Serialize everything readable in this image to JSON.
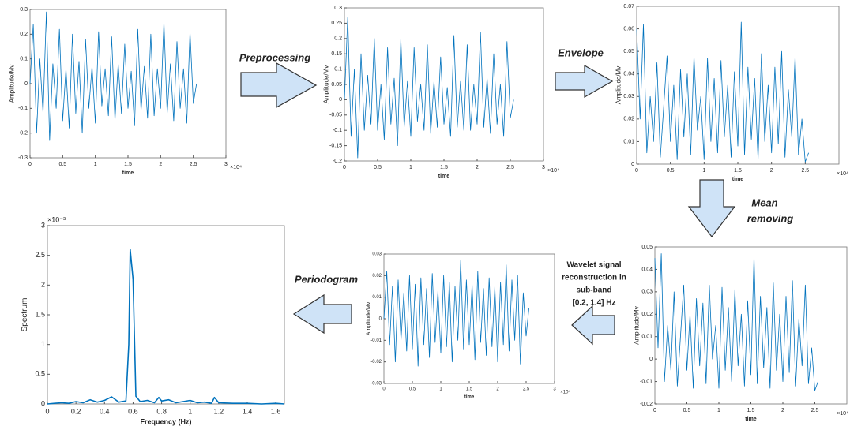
{
  "chart_data": [
    {
      "type": "line",
      "y_label": "Amplitude/Mv",
      "x_label": "time",
      "x_multiplier": "×10⁴",
      "color": "#0072bd",
      "xlim": [
        0,
        3
      ],
      "ylim": [
        -0.3,
        0.3
      ],
      "xticks": [
        0,
        0.5,
        1,
        1.5,
        2,
        2.5,
        3
      ],
      "yticks": [
        -0.3,
        -0.2,
        -0.1,
        0,
        0.1,
        0.2,
        0.3
      ],
      "x": [
        0,
        0.05,
        0.1,
        0.15,
        0.2,
        0.25,
        0.3,
        0.35,
        0.4,
        0.45,
        0.5,
        0.55,
        0.6,
        0.65,
        0.7,
        0.75,
        0.8,
        0.85,
        0.9,
        0.95,
        1,
        1.05,
        1.1,
        1.15,
        1.2,
        1.25,
        1.3,
        1.35,
        1.4,
        1.45,
        1.5,
        1.55,
        1.6,
        1.65,
        1.7,
        1.75,
        1.8,
        1.85,
        1.9,
        1.95,
        2,
        2.05,
        2.1,
        2.15,
        2.2,
        2.25,
        2.3,
        2.35,
        2.4,
        2.45,
        2.5,
        2.55
      ],
      "values": [
        0.0,
        0.24,
        -0.2,
        0.1,
        -0.12,
        0.29,
        -0.23,
        0.08,
        -0.1,
        0.22,
        -0.15,
        0.06,
        -0.18,
        0.2,
        -0.12,
        0.09,
        -0.2,
        0.18,
        -0.1,
        0.07,
        -0.16,
        0.21,
        -0.09,
        0.06,
        -0.13,
        0.19,
        -0.15,
        0.08,
        -0.12,
        0.16,
        -0.1,
        0.05,
        -0.17,
        0.22,
        -0.11,
        0.07,
        -0.14,
        0.2,
        -0.13,
        0.06,
        -0.1,
        0.25,
        -0.12,
        0.08,
        -0.15,
        0.17,
        -0.1,
        0.06,
        -0.16,
        0.21,
        -0.08,
        0.0
      ]
    },
    {
      "type": "line",
      "y_label": "Amplitude/Mv",
      "x_label": "time",
      "x_multiplier": "×10⁴",
      "color": "#0072bd",
      "xlim": [
        0,
        3
      ],
      "ylim": [
        -0.2,
        0.3
      ],
      "xticks": [
        0,
        0.5,
        1,
        1.5,
        2,
        2.5,
        3
      ],
      "yticks": [
        -0.2,
        -0.15,
        -0.1,
        -0.05,
        0,
        0.05,
        0.1,
        0.15,
        0.2,
        0.25,
        0.3
      ],
      "x": [
        0,
        0.05,
        0.1,
        0.15,
        0.2,
        0.25,
        0.3,
        0.35,
        0.4,
        0.45,
        0.5,
        0.55,
        0.6,
        0.65,
        0.7,
        0.75,
        0.8,
        0.85,
        0.9,
        0.95,
        1,
        1.05,
        1.1,
        1.15,
        1.2,
        1.25,
        1.3,
        1.35,
        1.4,
        1.45,
        1.5,
        1.55,
        1.6,
        1.65,
        1.7,
        1.75,
        1.8,
        1.85,
        1.9,
        1.95,
        2,
        2.05,
        2.1,
        2.15,
        2.2,
        2.25,
        2.3,
        2.35,
        2.4,
        2.45,
        2.5,
        2.55
      ],
      "values": [
        0.0,
        0.27,
        -0.12,
        0.1,
        -0.19,
        0.15,
        -0.1,
        0.08,
        -0.08,
        0.2,
        -0.1,
        0.05,
        -0.13,
        0.17,
        -0.08,
        0.07,
        -0.15,
        0.2,
        -0.09,
        0.06,
        -0.12,
        0.17,
        -0.07,
        0.05,
        -0.1,
        0.18,
        -0.11,
        0.06,
        -0.09,
        0.14,
        -0.08,
        0.04,
        -0.12,
        0.21,
        -0.09,
        0.06,
        -0.1,
        0.18,
        -0.1,
        0.05,
        -0.08,
        0.22,
        -0.09,
        0.07,
        -0.11,
        0.15,
        -0.08,
        0.05,
        -0.12,
        0.19,
        -0.06,
        0.0
      ]
    },
    {
      "type": "line",
      "y_label": "Amplitude/Mv",
      "x_label": "time",
      "x_multiplier": "×10⁴",
      "color": "#0072bd",
      "xlim": [
        0,
        3
      ],
      "ylim": [
        0,
        0.07
      ],
      "xticks": [
        0,
        0.5,
        1,
        1.5,
        2,
        2.5
      ],
      "yticks": [
        0,
        0.01,
        0.02,
        0.03,
        0.04,
        0.05,
        0.06,
        0.07
      ],
      "x": [
        0,
        0.05,
        0.1,
        0.15,
        0.2,
        0.25,
        0.3,
        0.35,
        0.4,
        0.45,
        0.5,
        0.55,
        0.6,
        0.65,
        0.7,
        0.75,
        0.8,
        0.85,
        0.9,
        0.95,
        1,
        1.05,
        1.1,
        1.15,
        1.2,
        1.25,
        1.3,
        1.35,
        1.4,
        1.45,
        1.5,
        1.55,
        1.6,
        1.65,
        1.7,
        1.75,
        1.8,
        1.85,
        1.9,
        1.95,
        2,
        2.05,
        2.1,
        2.15,
        2.2,
        2.25,
        2.3,
        2.35,
        2.4,
        2.45,
        2.5,
        2.55
      ],
      "values": [
        0.06,
        0.02,
        0.062,
        0.005,
        0.03,
        0.01,
        0.045,
        0.003,
        0.025,
        0.048,
        0.01,
        0.035,
        0.002,
        0.042,
        0.012,
        0.04,
        0.004,
        0.048,
        0.015,
        0.03,
        0.002,
        0.047,
        0.01,
        0.038,
        0.005,
        0.046,
        0.012,
        0.035,
        0.003,
        0.041,
        0.008,
        0.063,
        0.004,
        0.043,
        0.011,
        0.038,
        0.002,
        0.049,
        0.01,
        0.035,
        0.005,
        0.043,
        0.009,
        0.05,
        0.003,
        0.033,
        0.012,
        0.048,
        0.004,
        0.02,
        0.001,
        0.005
      ]
    },
    {
      "type": "line",
      "y_label": "Amplitude/Mv",
      "x_label": "time",
      "x_multiplier": "×10⁴",
      "color": "#0072bd",
      "xlim": [
        0,
        3
      ],
      "ylim": [
        -0.02,
        0.05
      ],
      "xticks": [
        0,
        0.5,
        1,
        1.5,
        2,
        2.5
      ],
      "yticks": [
        -0.02,
        -0.01,
        0,
        0.01,
        0.02,
        0.03,
        0.04,
        0.05
      ],
      "x": [
        0,
        0.05,
        0.1,
        0.15,
        0.2,
        0.25,
        0.3,
        0.35,
        0.4,
        0.45,
        0.5,
        0.55,
        0.6,
        0.65,
        0.7,
        0.75,
        0.8,
        0.85,
        0.9,
        0.95,
        1,
        1.05,
        1.1,
        1.15,
        1.2,
        1.25,
        1.3,
        1.35,
        1.4,
        1.45,
        1.5,
        1.55,
        1.6,
        1.65,
        1.7,
        1.75,
        1.8,
        1.85,
        1.9,
        1.95,
        2,
        2.05,
        2.1,
        2.15,
        2.2,
        2.25,
        2.3,
        2.35,
        2.4,
        2.45,
        2.5,
        2.55
      ],
      "values": [
        0.045,
        0.005,
        0.047,
        -0.01,
        0.015,
        -0.005,
        0.03,
        -0.012,
        0.01,
        0.033,
        -0.005,
        0.02,
        -0.013,
        0.027,
        -0.003,
        0.025,
        -0.011,
        0.033,
        0,
        0.015,
        -0.013,
        0.032,
        -0.005,
        0.023,
        -0.01,
        0.031,
        -0.003,
        0.02,
        -0.012,
        0.026,
        -0.007,
        0.046,
        -0.011,
        0.028,
        -0.004,
        0.023,
        -0.013,
        0.034,
        -0.005,
        0.02,
        -0.01,
        0.028,
        -0.006,
        0.035,
        -0.012,
        0.018,
        -0.003,
        0.033,
        -0.011,
        0.005,
        -0.014,
        -0.01
      ]
    },
    {
      "type": "line",
      "y_label": "Amplitude/Mv",
      "x_label": "time",
      "x_multiplier": "×10⁴",
      "color": "#0072bd",
      "xlim": [
        0,
        3
      ],
      "ylim": [
        -0.03,
        0.03
      ],
      "xticks": [
        0,
        0.5,
        1,
        1.5,
        2,
        2.5,
        3
      ],
      "yticks": [
        -0.03,
        -0.02,
        -0.01,
        0,
        0.01,
        0.02,
        0.03
      ],
      "x": [
        0,
        0.05,
        0.1,
        0.15,
        0.2,
        0.25,
        0.3,
        0.35,
        0.4,
        0.45,
        0.5,
        0.55,
        0.6,
        0.65,
        0.7,
        0.75,
        0.8,
        0.85,
        0.9,
        0.95,
        1,
        1.05,
        1.1,
        1.15,
        1.2,
        1.25,
        1.3,
        1.35,
        1.4,
        1.45,
        1.5,
        1.55,
        1.6,
        1.65,
        1.7,
        1.75,
        1.8,
        1.85,
        1.9,
        1.95,
        2,
        2.05,
        2.1,
        2.15,
        2.2,
        2.25,
        2.3,
        2.35,
        2.4,
        2.45,
        2.5,
        2.55
      ],
      "values": [
        0,
        0.022,
        -0.012,
        0.015,
        -0.02,
        0.018,
        -0.01,
        0.012,
        -0.015,
        0.02,
        -0.014,
        0.016,
        -0.022,
        0.019,
        -0.012,
        0.014,
        -0.018,
        0.021,
        -0.011,
        0.013,
        -0.016,
        0.02,
        -0.013,
        0.017,
        -0.02,
        0.015,
        -0.01,
        0.027,
        -0.014,
        0.018,
        -0.012,
        0.016,
        -0.019,
        0.022,
        -0.011,
        0.014,
        -0.017,
        0.019,
        -0.013,
        0.015,
        -0.02,
        0.017,
        -0.012,
        0.025,
        -0.015,
        0.018,
        -0.01,
        0.02,
        -0.021,
        0.012,
        -0.008,
        0.005
      ]
    },
    {
      "type": "line",
      "y_label": "Spectrum",
      "x_label": "Frequency (Hz)",
      "y_multiplier": "×10⁻³",
      "color": "#0072bd",
      "xlim": [
        0,
        1.66
      ],
      "ylim": [
        0,
        3
      ],
      "xticks": [
        0,
        0.2,
        0.4,
        0.6,
        0.8,
        1,
        1.2,
        1.4,
        1.6
      ],
      "yticks": [
        0,
        0.5,
        1,
        1.5,
        2,
        2.5,
        3
      ],
      "x": [
        0,
        0.05,
        0.1,
        0.15,
        0.2,
        0.25,
        0.3,
        0.35,
        0.4,
        0.45,
        0.5,
        0.55,
        0.57,
        0.58,
        0.6,
        0.62,
        0.65,
        0.7,
        0.75,
        0.78,
        0.8,
        0.85,
        0.9,
        0.95,
        1,
        1.05,
        1.1,
        1.15,
        1.17,
        1.2,
        1.3,
        1.4,
        1.5,
        1.6,
        1.66
      ],
      "values": [
        0,
        0.01,
        0.02,
        0.01,
        0.04,
        0.02,
        0.07,
        0.03,
        0.06,
        0.12,
        0.03,
        0.05,
        1.0,
        2.6,
        2.1,
        0.13,
        0.04,
        0.06,
        0.02,
        0.11,
        0.05,
        0.07,
        0.02,
        0.04,
        0.06,
        0.02,
        0.03,
        0.01,
        0.11,
        0.02,
        0.01,
        0.01,
        0,
        0.01,
        0
      ]
    }
  ],
  "steps": {
    "preprocessing": "Preprocessing",
    "envelope": "Envelope",
    "mean_removing": [
      "Mean",
      "removing"
    ],
    "wavelet": [
      "Wavelet signal",
      "reconstruction in",
      "sub-band",
      "[0.2, 1.4] Hz"
    ],
    "periodogram": "Periodogram"
  }
}
